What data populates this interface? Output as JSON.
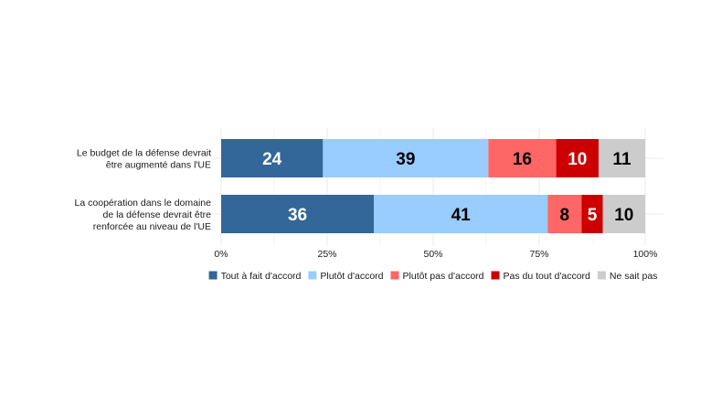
{
  "chart_data": {
    "type": "bar",
    "orientation": "horizontal",
    "stacked": true,
    "categories": [
      [
        "Le budget de la défense devrait",
        "être augmenté dans l'UE"
      ],
      [
        "La coopération dans le domaine",
        "de la défense devrait être",
        "renforcée au niveau de l'UE"
      ]
    ],
    "series": [
      {
        "name": "Tout à fait d'accord",
        "color": "#336699",
        "label_color": "#ffffff",
        "values": [
          24,
          36
        ]
      },
      {
        "name": "Plutôt d'accord",
        "color": "#99ccff",
        "label_color": "#000000",
        "values": [
          39,
          41
        ]
      },
      {
        "name": "Plutôt pas d'accord",
        "color": "#ff6666",
        "label_color": "#000000",
        "values": [
          16,
          8
        ]
      },
      {
        "name": "Pas du tout d'accord",
        "color": "#cc0000",
        "label_color": "#ffffff",
        "values": [
          10,
          5
        ]
      },
      {
        "name": "Ne sait pas",
        "color": "#cccccc",
        "label_color": "#000000",
        "values": [
          11,
          10
        ]
      }
    ],
    "xlim": [
      0,
      100
    ],
    "xticks": [
      0,
      25,
      50,
      75,
      100
    ],
    "xtick_labels": [
      "0%",
      "25%",
      "50%",
      "75%",
      "100%"
    ],
    "grid": "vertical-major",
    "legend_position": "bottom"
  }
}
